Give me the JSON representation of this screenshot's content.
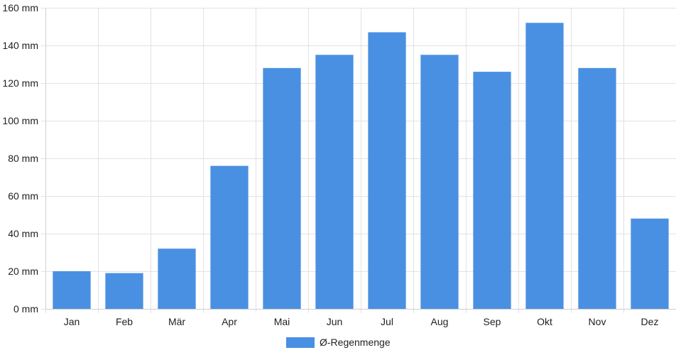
{
  "chart_data": {
    "type": "bar",
    "categories": [
      "Jan",
      "Feb",
      "Mär",
      "Apr",
      "Mai",
      "Jun",
      "Jul",
      "Aug",
      "Sep",
      "Okt",
      "Nov",
      "Dez"
    ],
    "series": [
      {
        "name": "Ø-Regenmenge",
        "color": "#4a90e2",
        "values": [
          20,
          19,
          32,
          76,
          128,
          135,
          147,
          135,
          126,
          152,
          128,
          48
        ]
      }
    ],
    "title": "",
    "xlabel": "",
    "ylabel": "",
    "ylim": [
      0,
      160
    ],
    "yticks": [
      0,
      20,
      40,
      60,
      80,
      100,
      120,
      140,
      160
    ],
    "ytick_unit": " mm",
    "grid": true,
    "legend_position": "bottom"
  }
}
